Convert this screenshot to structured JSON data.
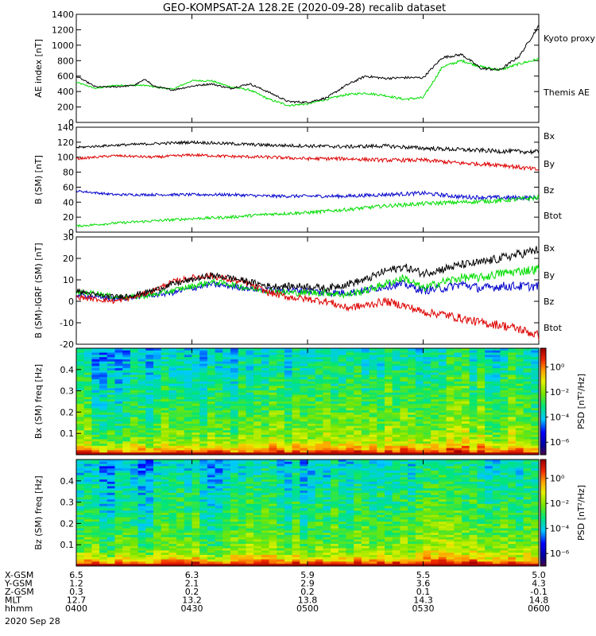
{
  "title": "GEO-KOMPSAT-2A 128.2E (2020-09-28) recalib dataset",
  "time_axis": {
    "start": "0400",
    "end": "0600",
    "ticks": [
      "0400",
      "0430",
      "0500",
      "0530",
      "0600"
    ],
    "date_label": "2020 Sep 28"
  },
  "colors": {
    "black": "#000000",
    "green": "#00dd00",
    "red": "#dd0000",
    "blue": "#0000cc"
  },
  "chart_data": [
    {
      "type": "line",
      "ylabel": "AE index [nT]",
      "ylim": [
        0,
        1400
      ],
      "yticks": [
        "0",
        "200",
        "400",
        "600",
        "800",
        "1000",
        "1200",
        "1400"
      ],
      "x": [
        0,
        5,
        10,
        15,
        18,
        20,
        25,
        30,
        35,
        40,
        45,
        50,
        55,
        60,
        65,
        70,
        75,
        80,
        85,
        90,
        95,
        100,
        105,
        110,
        115,
        120
      ],
      "series": [
        {
          "name": "Kyoto proxy AE",
          "color": "#00dd00",
          "values": [
            520,
            440,
            480,
            480,
            480,
            460,
            430,
            540,
            540,
            460,
            420,
            300,
            220,
            240,
            300,
            360,
            380,
            350,
            300,
            320,
            720,
            800,
            720,
            680,
            760,
            820
          ]
        },
        {
          "name": "Themis AE",
          "color": "#000000",
          "values": [
            600,
            460,
            460,
            480,
            560,
            470,
            420,
            470,
            500,
            440,
            500,
            390,
            270,
            260,
            320,
            480,
            600,
            570,
            580,
            580,
            840,
            880,
            700,
            680,
            860,
            1250
          ]
        }
      ]
    },
    {
      "type": "line",
      "ylabel": "B (SM) [nT]",
      "ylim": [
        0,
        140
      ],
      "yticks": [
        "0",
        "20",
        "40",
        "60",
        "80",
        "100",
        "120",
        "140"
      ],
      "x": [
        0,
        10,
        20,
        30,
        40,
        50,
        60,
        70,
        80,
        90,
        100,
        110,
        120
      ],
      "series": [
        {
          "name": "Bx",
          "color": "#0000cc",
          "values": [
            55,
            50,
            50,
            50,
            50,
            48,
            48,
            48,
            50,
            52,
            47,
            46,
            46
          ]
        },
        {
          "name": "By",
          "color": "#00dd00",
          "values": [
            8,
            12,
            15,
            18,
            20,
            24,
            26,
            30,
            35,
            38,
            40,
            42,
            46
          ]
        },
        {
          "name": "Bz",
          "color": "#dd0000",
          "values": [
            98,
            102,
            100,
            103,
            101,
            100,
            98,
            98,
            96,
            96,
            92,
            90,
            83
          ]
        },
        {
          "name": "Btot",
          "color": "#000000",
          "values": [
            113,
            116,
            118,
            120,
            118,
            116,
            115,
            114,
            115,
            112,
            110,
            108,
            107
          ]
        }
      ]
    },
    {
      "type": "line",
      "ylabel": "B (SM)-IGRF (SM) [nT]",
      "ylim": [
        -20,
        30
      ],
      "yticks": [
        "-20",
        "-10",
        "0",
        "10",
        "20",
        "30"
      ],
      "x": [
        0,
        5,
        10,
        15,
        20,
        25,
        30,
        35,
        40,
        45,
        50,
        55,
        60,
        65,
        70,
        75,
        80,
        85,
        90,
        95,
        100,
        105,
        110,
        115,
        120
      ],
      "series": [
        {
          "name": "Bx",
          "color": "#0000cc",
          "values": [
            3,
            2,
            1,
            2,
            3,
            4,
            6,
            8,
            7,
            6,
            5,
            5,
            5,
            4,
            4,
            5,
            7,
            8,
            5,
            6,
            8,
            6,
            7,
            7,
            7
          ]
        },
        {
          "name": "By",
          "color": "#00dd00",
          "values": [
            4,
            4,
            2,
            2,
            3,
            5,
            7,
            9,
            8,
            6,
            5,
            4,
            4,
            4,
            3,
            5,
            8,
            11,
            6,
            9,
            11,
            11,
            13,
            14,
            15
          ]
        },
        {
          "name": "Bz",
          "color": "#dd0000",
          "values": [
            2,
            1,
            0,
            2,
            5,
            9,
            11,
            12,
            10,
            8,
            4,
            2,
            1,
            0,
            -3,
            -2,
            0,
            -2,
            -5,
            -6,
            -8,
            -10,
            -11,
            -13,
            -16
          ]
        },
        {
          "name": "Btot",
          "color": "#000000",
          "values": [
            5,
            3,
            2,
            3,
            5,
            8,
            10,
            12,
            11,
            9,
            7,
            7,
            7,
            6,
            8,
            10,
            14,
            16,
            13,
            15,
            17,
            18,
            20,
            22,
            24
          ]
        }
      ]
    },
    {
      "type": "heatmap",
      "ylabel": "Bx (SM) freq [Hz]",
      "ylim": [
        0,
        0.5
      ],
      "yticks": [
        "0.1",
        "0.2",
        "0.3",
        "0.4"
      ],
      "colorbar_label": "PSD [nT²/Hz]",
      "colorbar_ticks": [
        "10⁰",
        "10⁻²",
        "10⁻⁴",
        "10⁻⁶"
      ],
      "colorbar_range_log10": [
        -7,
        1.5
      ],
      "x": [
        0,
        10,
        20,
        30,
        40,
        50,
        60,
        70,
        80,
        90,
        100,
        110,
        120
      ],
      "band_activity": [
        0.45,
        0.4,
        0.45,
        0.55,
        0.5,
        0.6,
        0.65,
        0.65,
        0.7,
        0.7,
        0.8,
        0.7,
        0.75
      ]
    },
    {
      "type": "heatmap",
      "ylabel": "Bz (SM) freq [Hz]",
      "ylim": [
        0,
        0.5
      ],
      "yticks": [
        "0.1",
        "0.2",
        "0.3",
        "0.4"
      ],
      "colorbar_label": "PSD [nT²/Hz]",
      "colorbar_ticks": [
        "10⁰",
        "10⁻²",
        "10⁻⁴",
        "10⁻⁶"
      ],
      "colorbar_range_log10": [
        -7,
        1.5
      ],
      "x": [
        0,
        10,
        20,
        30,
        40,
        50,
        60,
        70,
        80,
        90,
        100,
        110,
        120
      ],
      "band_activity": [
        0.35,
        0.3,
        0.35,
        0.45,
        0.45,
        0.5,
        0.55,
        0.6,
        0.65,
        0.7,
        0.75,
        0.65,
        0.7
      ]
    }
  ],
  "ephemeris": [
    {
      "label": "X-GSM",
      "values": [
        "6.5",
        "6.3",
        "5.9",
        "5.5",
        "5.0"
      ]
    },
    {
      "label": "Y-GSM",
      "values": [
        "1.2",
        "2.1",
        "2.9",
        "3.6",
        "4.3"
      ]
    },
    {
      "label": "Z-GSM",
      "values": [
        "0.3",
        "0.2",
        "0.2",
        "0.1",
        "-0.1"
      ]
    },
    {
      "label": "MLT",
      "values": [
        "12.7",
        "13.2",
        "13.8",
        "14.3",
        "14.8"
      ]
    },
    {
      "label": "hhmm",
      "values": [
        "0400",
        "0430",
        "0500",
        "0530",
        "0600"
      ]
    }
  ]
}
